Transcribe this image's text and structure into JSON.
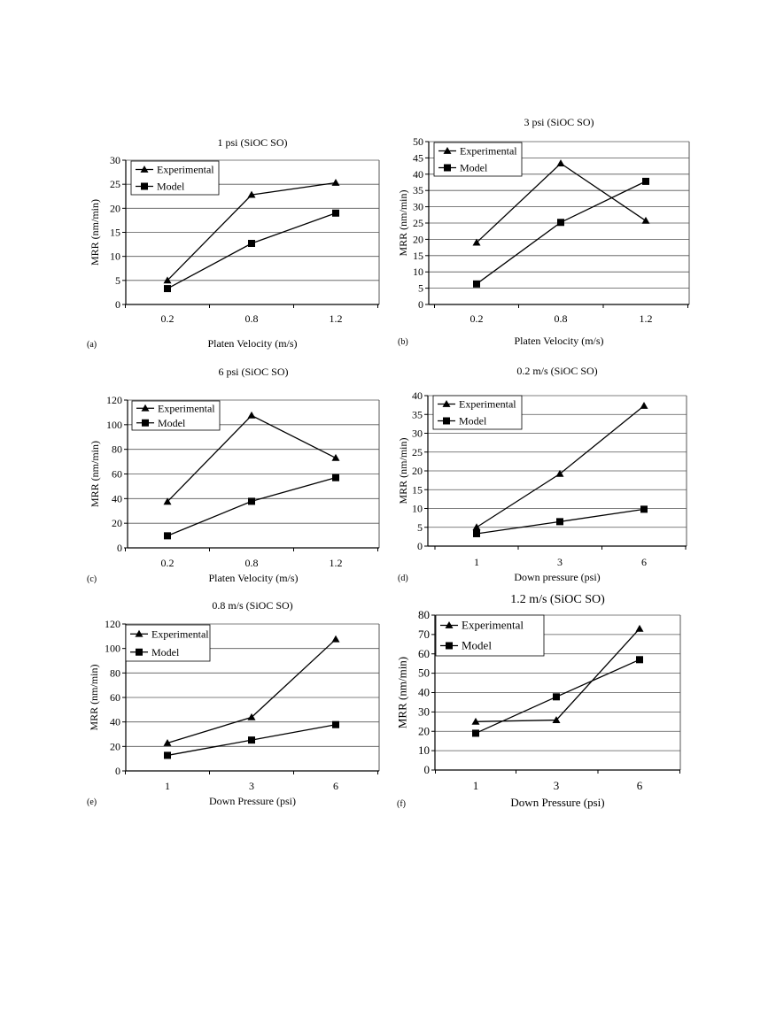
{
  "figure": {
    "panels": [
      {
        "id": "a",
        "label": "(a)",
        "title": "1 psi (SiOC SO)",
        "xlabel": "Platen Velocity (m/s)",
        "ylabel": "MRR (nm/min)"
      },
      {
        "id": "b",
        "label": "(b)",
        "title": "3 psi (SiOC SO)",
        "xlabel": "Platen Velocity (m/s)",
        "ylabel": "MRR (nm/min)"
      },
      {
        "id": "c",
        "label": "(c)",
        "title": "6 psi (SiOC SO)",
        "xlabel": "Platen Velocity (m/s)",
        "ylabel": "MRR (nm/min)"
      },
      {
        "id": "d",
        "label": "(d)",
        "title": "0.2 m/s (SiOC SO)",
        "xlabel": "Down pressure (psi)",
        "ylabel": "MRR (nm/min)"
      },
      {
        "id": "e",
        "label": "(e)",
        "title": "0.8 m/s (SiOC SO)",
        "xlabel": "Down Pressure (psi)",
        "ylabel": "MRR (nm/min)"
      },
      {
        "id": "f",
        "label": "(f)",
        "title": "1.2 m/s (SiOC SO)",
        "xlabel": "Down Pressure (psi)",
        "ylabel": "MRR (nm/min)"
      }
    ]
  },
  "chart_data": [
    {
      "type": "line",
      "title": "1 psi (SiOC SO)",
      "xlabel": "Platen Velocity (m/s)",
      "ylabel": "MRR (nm/min)",
      "categories": [
        "0.2",
        "0.8",
        "1.2"
      ],
      "ylim": [
        0,
        30
      ],
      "yticks": [
        0,
        5,
        10,
        15,
        20,
        25,
        30
      ],
      "grid": true,
      "legend": "top-left",
      "series": [
        {
          "name": "Experimental",
          "marker": "triangle",
          "values": [
            5,
            22.8,
            25.3
          ]
        },
        {
          "name": "Model",
          "marker": "square",
          "values": [
            3.3,
            12.7,
            19
          ]
        }
      ]
    },
    {
      "type": "line",
      "title": "3 psi (SiOC SO)",
      "xlabel": "Platen Velocity (m/s)",
      "ylabel": "MRR (nm/min)",
      "categories": [
        "0.2",
        "0.8",
        "1.2"
      ],
      "ylim": [
        0,
        50
      ],
      "yticks": [
        0,
        5,
        10,
        15,
        20,
        25,
        30,
        35,
        40,
        45,
        50
      ],
      "grid": true,
      "legend": "top-left",
      "series": [
        {
          "name": "Experimental",
          "marker": "triangle",
          "values": [
            19,
            43.3,
            25.7
          ]
        },
        {
          "name": "Model",
          "marker": "square",
          "values": [
            6.3,
            25.2,
            37.8
          ]
        }
      ]
    },
    {
      "type": "line",
      "title": "6 psi (SiOC SO)",
      "xlabel": "Platen Velocity (m/s)",
      "ylabel": "MRR (nm/min)",
      "categories": [
        "0.2",
        "0.8",
        "1.2"
      ],
      "ylim": [
        0,
        120
      ],
      "yticks": [
        0,
        20,
        40,
        60,
        80,
        100,
        120
      ],
      "grid": true,
      "legend": "top-left",
      "series": [
        {
          "name": "Experimental",
          "marker": "triangle",
          "values": [
            37.5,
            107.5,
            73
          ]
        },
        {
          "name": "Model",
          "marker": "square",
          "values": [
            9.8,
            37.8,
            57
          ]
        }
      ]
    },
    {
      "type": "line",
      "title": "0.2 m/s (SiOC SO)",
      "xlabel": "Down pressure (psi)",
      "ylabel": "MRR (nm/min)",
      "categories": [
        "1",
        "3",
        "6"
      ],
      "ylim": [
        0,
        40
      ],
      "yticks": [
        0,
        5,
        10,
        15,
        20,
        25,
        30,
        35,
        40
      ],
      "grid": true,
      "legend": "top-left",
      "series": [
        {
          "name": "Experimental",
          "marker": "triangle",
          "values": [
            5,
            19.2,
            37.3
          ]
        },
        {
          "name": "Model",
          "marker": "square",
          "values": [
            3.3,
            6.5,
            9.8
          ]
        }
      ]
    },
    {
      "type": "line",
      "title": "0.8 m/s (SiOC SO)",
      "xlabel": "Down Pressure (psi)",
      "ylabel": "MRR (nm/min)",
      "categories": [
        "1",
        "3",
        "6"
      ],
      "ylim": [
        0,
        120
      ],
      "yticks": [
        0,
        20,
        40,
        60,
        80,
        100,
        120
      ],
      "grid": true,
      "legend": "top-left",
      "series": [
        {
          "name": "Experimental",
          "marker": "triangle",
          "values": [
            22.8,
            43.8,
            107.5
          ]
        },
        {
          "name": "Model",
          "marker": "square",
          "values": [
            12.7,
            25.2,
            37.8
          ]
        }
      ]
    },
    {
      "type": "line",
      "title": "1.2 m/s (SiOC SO)",
      "xlabel": "Down Pressure (psi)",
      "ylabel": "MRR (nm/min)",
      "categories": [
        "1",
        "3",
        "6"
      ],
      "ylim": [
        0,
        80
      ],
      "yticks": [
        0,
        10,
        20,
        30,
        40,
        50,
        60,
        70,
        80
      ],
      "grid": true,
      "legend": "top-left",
      "series": [
        {
          "name": "Experimental",
          "marker": "triangle",
          "values": [
            25,
            25.8,
            73
          ]
        },
        {
          "name": "Model",
          "marker": "square",
          "values": [
            19,
            37.8,
            57
          ]
        }
      ]
    }
  ]
}
